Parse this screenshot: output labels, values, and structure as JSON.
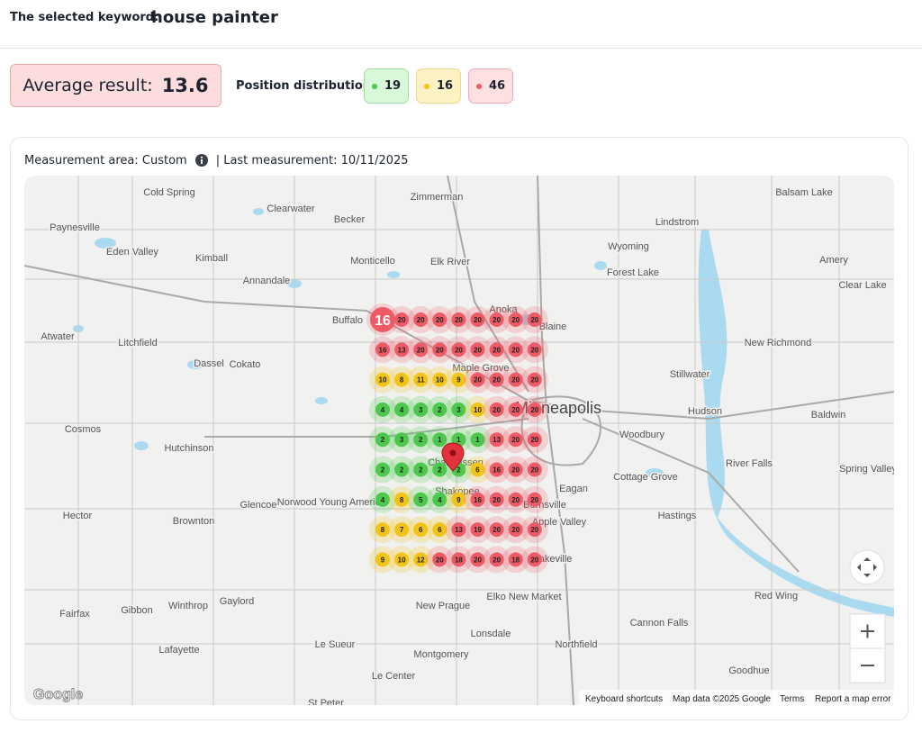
{
  "header": {
    "label": "The selected keyword:",
    "keyword": "house painter"
  },
  "summary": {
    "average_label": "Average result:",
    "average": 13.6,
    "distribution_label": "Position distribution:",
    "distribution": [
      {
        "count": 19,
        "color": "#4cc94c"
      },
      {
        "count": 16,
        "color": "#f2c418"
      },
      {
        "count": 46,
        "color": "#ee5b67"
      }
    ]
  },
  "card": {
    "area": "Measurement area: Custom",
    "last": "| Last measurement: 10/11/2025"
  },
  "map": {
    "grid": [
      [
        16,
        20,
        20,
        20,
        20,
        20,
        20,
        20,
        20
      ],
      [
        16,
        13,
        20,
        20,
        20,
        20,
        20,
        20,
        20
      ],
      [
        10,
        8,
        11,
        10,
        9,
        20,
        20,
        20,
        20
      ],
      [
        4,
        4,
        3,
        2,
        3,
        10,
        20,
        20,
        20
      ],
      [
        2,
        3,
        2,
        1,
        1,
        1,
        13,
        20,
        20
      ],
      [
        2,
        2,
        2,
        2,
        2,
        6,
        16,
        20,
        20
      ],
      [
        4,
        8,
        5,
        4,
        9,
        16,
        20,
        20,
        20
      ],
      [
        8,
        7,
        6,
        6,
        13,
        19,
        20,
        20,
        20
      ],
      [
        9,
        10,
        12,
        20,
        18,
        20,
        20,
        18,
        20
      ]
    ],
    "places": [
      "Cold Spring",
      "Zimmerman",
      "Balsam Lake",
      "Paynesville",
      "Clearwater",
      "Becker",
      "Lindstrom",
      "Eden Valley",
      "Kimball",
      "Monticello",
      "Elk River",
      "Wyoming",
      "Amery",
      "Annandale",
      "Forest Lake",
      "Clear Lake",
      "Buffalo",
      "Anoka",
      "Blaine",
      "Atwater",
      "Litchfield",
      "New Richmond",
      "Dassel",
      "Cokato",
      "Maple Grove",
      "Stillwater",
      "Minneapolis",
      "Hudson",
      "Baldwin",
      "Cosmos",
      "Hutchinson",
      "Woodbury",
      "Chanhassen",
      "River Falls",
      "Spring Valley",
      "Shakopee",
      "Eagan",
      "Cottage Grove",
      "Norwood Young America",
      "Glencoe",
      "Burnsville",
      "Hector",
      "Brownton",
      "Hastings",
      "Apple Valley",
      "Lakeville",
      "Gaylord",
      "Winthrop",
      "Gibbon",
      "Fairfax",
      "New Prague",
      "Elko New Market",
      "Red Wing",
      "Lonsdale",
      "Cannon Falls",
      "Lafayette",
      "Le Sueur",
      "Northfield",
      "Montgomery",
      "Le Center",
      "Goodhue",
      "St Peter"
    ],
    "attribution": [
      "Keyboard shortcuts",
      "Map data ©2025 Google",
      "Terms",
      "Report a map error"
    ],
    "logo": "Google"
  }
}
